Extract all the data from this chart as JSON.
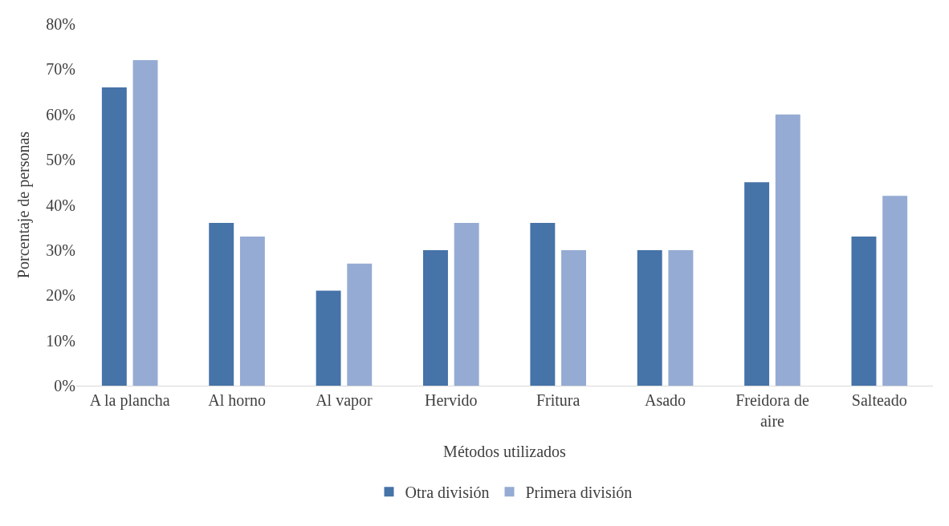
{
  "chart_data": {
    "type": "bar",
    "xlabel": "Métodos utilizados",
    "ylabel": "Porcentaje de personas",
    "categories": [
      "A la plancha",
      "Al horno",
      "Al vapor",
      "Hervido",
      "Fritura",
      "Asado",
      "Freidora de aire",
      "Salteado"
    ],
    "series": [
      {
        "name": "Otra división",
        "color": "#4673a8",
        "values": [
          66,
          36,
          21,
          30,
          36,
          30,
          45,
          33
        ]
      },
      {
        "name": "Primera división",
        "color": "#95abd3",
        "values": [
          72,
          33,
          27,
          36,
          30,
          30,
          60,
          42
        ]
      }
    ],
    "ylim": [
      0,
      80
    ],
    "yticks": [
      {
        "value": 0,
        "label": "0%"
      },
      {
        "value": 10,
        "label": "10%"
      },
      {
        "value": 20,
        "label": "20%"
      },
      {
        "value": 30,
        "label": "30%"
      },
      {
        "value": 40,
        "label": "40%"
      },
      {
        "value": 50,
        "label": "50%"
      },
      {
        "value": 60,
        "label": "60%"
      },
      {
        "value": 70,
        "label": "70%"
      },
      {
        "value": 80,
        "label": "80%"
      }
    ],
    "grid": false,
    "legend": "bottom"
  }
}
